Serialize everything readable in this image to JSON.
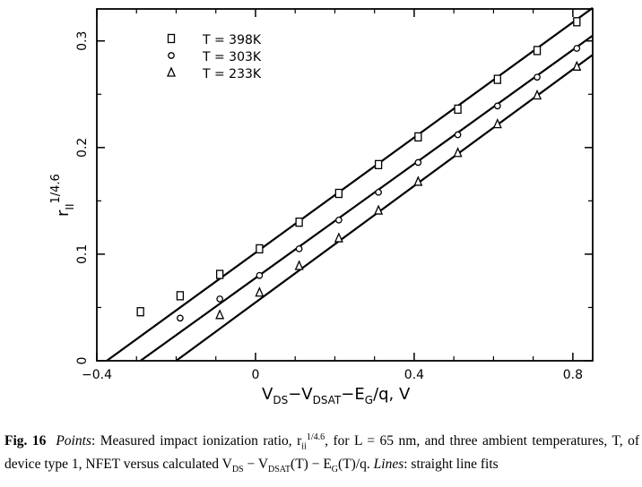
{
  "chart_data": {
    "type": "scatter",
    "xlabel_parts": {
      "v1": "V",
      "s1": "DS",
      "m1": "−V",
      "s2": "DSAT",
      "rest": "−E",
      "s3": "G",
      "tail": "/q,  V"
    },
    "ylabel_parts": {
      "r": "r",
      "sub": "II",
      "sup": "1/4.6"
    },
    "xlim": [
      -0.4,
      0.85
    ],
    "ylim": [
      0,
      0.33
    ],
    "x_ticks": [
      -0.4,
      0,
      0.4,
      0.8
    ],
    "x_tick_labels": [
      "−0.4",
      "0",
      "0.4",
      "0.8"
    ],
    "y_ticks": [
      0,
      0.1,
      0.2,
      0.3
    ],
    "y_tick_labels": [
      "0",
      "0.1",
      "0.2",
      "0.3"
    ],
    "legend_position": "top-left",
    "series": [
      {
        "name": "T = 398K",
        "marker": "square",
        "x": [
          -0.29,
          -0.19,
          -0.09,
          0.01,
          0.11,
          0.21,
          0.31,
          0.41,
          0.51,
          0.61,
          0.71,
          0.81
        ],
        "y": [
          0.046,
          0.061,
          0.081,
          0.105,
          0.13,
          0.157,
          0.184,
          0.21,
          0.236,
          0.264,
          0.291,
          0.318
        ],
        "fit": [
          [
            -0.375,
            0
          ],
          [
            0.85,
            0.331
          ]
        ]
      },
      {
        "name": "T = 303K",
        "marker": "circle",
        "x": [
          -0.19,
          -0.09,
          0.01,
          0.11,
          0.21,
          0.31,
          0.41,
          0.51,
          0.61,
          0.71,
          0.81
        ],
        "y": [
          0.04,
          0.058,
          0.08,
          0.105,
          0.132,
          0.158,
          0.186,
          0.212,
          0.239,
          0.266,
          0.293
        ],
        "fit": [
          [
            -0.29,
            0
          ],
          [
            0.85,
            0.305
          ]
        ]
      },
      {
        "name": "T = 233K",
        "marker": "triangle",
        "x": [
          -0.09,
          0.01,
          0.11,
          0.21,
          0.31,
          0.41,
          0.51,
          0.61,
          0.71,
          0.81
        ],
        "y": [
          0.043,
          0.064,
          0.089,
          0.115,
          0.141,
          0.168,
          0.195,
          0.222,
          0.249,
          0.276
        ],
        "fit": [
          [
            -0.2,
            0
          ],
          [
            0.85,
            0.287
          ]
        ]
      }
    ]
  },
  "caption": {
    "fig": "Fig. 16",
    "points_label": "Points",
    "text1": ": Measured impact ionization ratio, r",
    "sub1": "ii",
    "sup1": "1/4.6",
    "text2": ", for L = 65 nm, and three ambient temperatures, T, of device type 1, NFET versus calculated V",
    "sub2": "DS",
    "text3": " − V",
    "sub3": "DSAT",
    "text4": "(T) − E",
    "sub4": "G",
    "text5": "(T)/q. ",
    "lines_label": "Lines",
    "text6": ": straight line fits"
  }
}
